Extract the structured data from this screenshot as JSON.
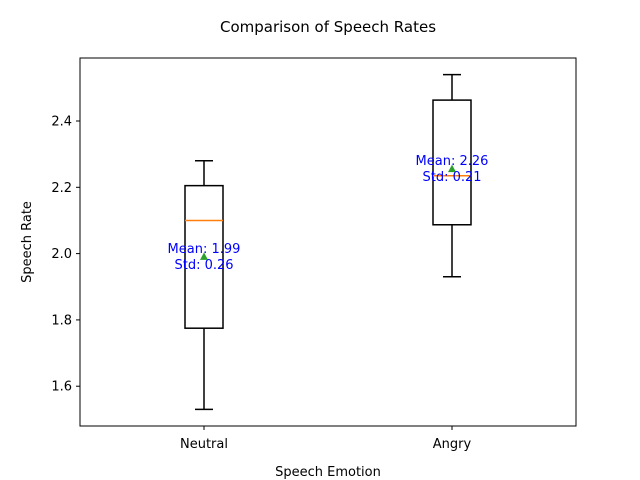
{
  "chart_data": {
    "type": "box",
    "title": "Comparison of Speech Rates",
    "xlabel": "Speech Emotion",
    "ylabel": "Speech Rate",
    "categories": [
      "Neutral",
      "Angry"
    ],
    "ylim": [
      1.48,
      2.59
    ],
    "yticks": [
      1.6,
      1.8,
      2.0,
      2.2,
      2.4
    ],
    "ytick_labels": [
      "1.6",
      "1.8",
      "2.0",
      "2.2",
      "2.4"
    ],
    "grid": false,
    "boxes": [
      {
        "category": "Neutral",
        "whisker_low": 1.53,
        "q1": 1.775,
        "median": 2.1,
        "q3": 2.205,
        "whisker_high": 2.28,
        "mean": 1.99,
        "annotation_line1": "Mean: 1.99",
        "annotation_line2": "Std: 0.26"
      },
      {
        "category": "Angry",
        "whisker_low": 1.93,
        "q1": 2.087,
        "median": 2.235,
        "q3": 2.463,
        "whisker_high": 2.54,
        "mean": 2.255,
        "annotation_line1": "Mean: 2.26",
        "annotation_line2": "Std: 0.21"
      }
    ],
    "colors": {
      "box": "#000000",
      "median": "#ff7f0e",
      "mean_marker": "#2ca02c",
      "annotation": "#0000ff"
    }
  }
}
